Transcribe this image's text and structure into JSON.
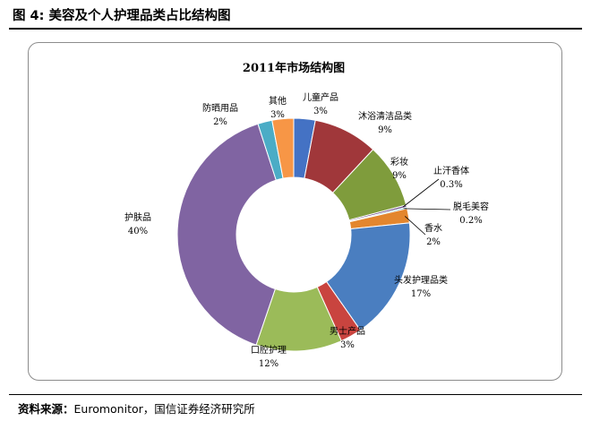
{
  "figure": {
    "caption": "图  4:  美容及个人护理品类占比结构图",
    "source_label": "资料来源：",
    "source_text": "Euromonitor，国信证券经济研究所"
  },
  "chart_data": {
    "type": "pie",
    "variant": "donut",
    "title": "2011年市场结构图",
    "slices": [
      {
        "name": "儿童产品",
        "value": 3,
        "label": "3%",
        "color": "#4472C4"
      },
      {
        "name": "沐浴清洁品类",
        "value": 9,
        "label": "9%",
        "color": "#A0373A"
      },
      {
        "name": "彩妆",
        "value": 9,
        "label": "9%",
        "color": "#7F9C3C"
      },
      {
        "name": "止汗香体",
        "value": 0.3,
        "label": "0.3%",
        "color": "#6A4E8C"
      },
      {
        "name": "脱毛美容",
        "value": 0.2,
        "label": "0.2%",
        "color": "#31A0BD"
      },
      {
        "name": "香水",
        "value": 2,
        "label": "2%",
        "color": "#E3862E"
      },
      {
        "name": "头发护理品类",
        "value": 17,
        "label": "17%",
        "color": "#4A7EC0"
      },
      {
        "name": "男士产品",
        "value": 3,
        "label": "3%",
        "color": "#C9443F"
      },
      {
        "name": "口腔护理",
        "value": 12,
        "label": "12%",
        "color": "#9BBB59"
      },
      {
        "name": "护肤品",
        "value": 40,
        "label": "40%",
        "color": "#8064A2"
      },
      {
        "name": "防晒用品",
        "value": 2,
        "label": "2%",
        "color": "#4BACC6"
      },
      {
        "name": "其他",
        "value": 3,
        "label": "3%",
        "color": "#F79646"
      }
    ]
  }
}
